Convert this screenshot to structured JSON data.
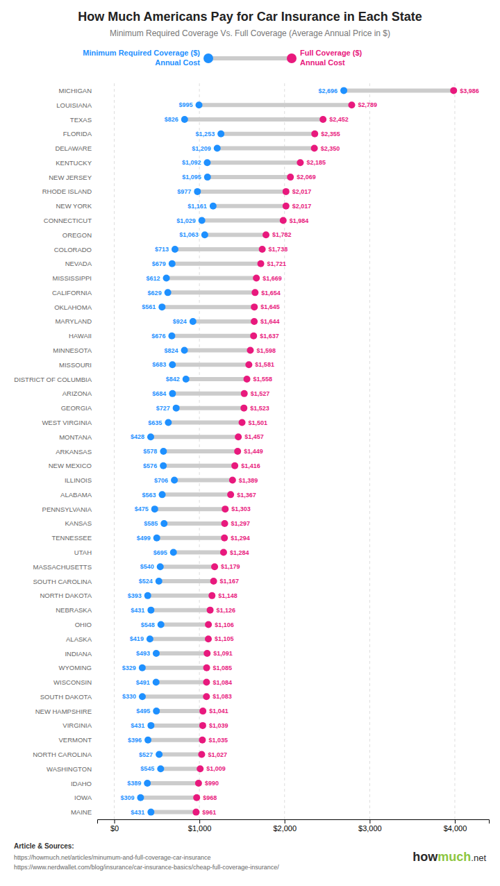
{
  "chart_data": {
    "type": "dumbbell",
    "orientation": "horizontal",
    "title": "How Much Americans Pay for Car Insurance in Each State",
    "subtitle": "Minimum Required Coverage Vs. Full Coverage (Average Annual Price in $)",
    "categories": [
      "MICHIGAN",
      "LOUISIANA",
      "TEXAS",
      "FLORIDA",
      "DELAWARE",
      "KENTUCKY",
      "NEW JERSEY",
      "RHODE ISLAND",
      "NEW YORK",
      "CONNECTICUT",
      "OREGON",
      "COLORADO",
      "NEVADA",
      "MISSISSIPPI",
      "CALIFORNIA",
      "OKLAHOMA",
      "MARYLAND",
      "HAWAII",
      "MINNESOTA",
      "MISSOURI",
      "DISTRICT OF COLUMBIA",
      "ARIZONA",
      "GEORGIA",
      "WEST VIRGINIA",
      "MONTANA",
      "ARKANSAS",
      "NEW MEXICO",
      "ILLINOIS",
      "ALABAMA",
      "PENNSYLVANIA",
      "KANSAS",
      "TENNESSEE",
      "UTAH",
      "MASSACHUSETTS",
      "SOUTH CAROLINA",
      "NORTH DAKOTA",
      "NEBRASKA",
      "OHIO",
      "ALASKA",
      "INDIANA",
      "WYOMING",
      "WISCONSIN",
      "SOUTH DAKOTA",
      "NEW HAMPSHIRE",
      "VIRGINIA",
      "VERMONT",
      "NORTH CAROLINA",
      "WASHINGTON",
      "IDAHO",
      "IOWA",
      "MAINE"
    ],
    "series": [
      {
        "name": "Minimum Required Coverage ($)\nAnnual Cost",
        "color": "#1E90FF",
        "values": [
          2696,
          995,
          826,
          1253,
          1209,
          1092,
          1095,
          977,
          1161,
          1029,
          1063,
          713,
          679,
          612,
          629,
          561,
          924,
          676,
          824,
          683,
          842,
          684,
          727,
          635,
          428,
          578,
          576,
          706,
          563,
          475,
          585,
          499,
          695,
          540,
          524,
          393,
          431,
          548,
          419,
          493,
          329,
          491,
          330,
          495,
          431,
          396,
          527,
          545,
          389,
          309,
          431
        ],
        "value_labels": [
          "$2,696",
          "$995",
          "$826",
          "$1,253",
          "$1,209",
          "$1,092",
          "$1,095",
          "$977",
          "$1,161",
          "$1,029",
          "$1,063",
          "$713",
          "$679",
          "$612",
          "$629",
          "$561",
          "$924",
          "$676",
          "$824",
          "$683",
          "$842",
          "$684",
          "$727",
          "$635",
          "$428",
          "$578",
          "$576",
          "$706",
          "$563",
          "$475",
          "$585",
          "$499",
          "$695",
          "$540",
          "$524",
          "$393",
          "$431",
          "$548",
          "$419",
          "$493",
          "$329",
          "$491",
          "$330",
          "$495",
          "$431",
          "$396",
          "$527",
          "$545",
          "$389",
          "$309",
          "$431"
        ]
      },
      {
        "name": "Full Coverage ($)\nAnnual Cost",
        "color": "#E8197D",
        "values": [
          3986,
          2789,
          2452,
          2355,
          2350,
          2185,
          2069,
          2017,
          2017,
          1984,
          1782,
          1738,
          1721,
          1669,
          1654,
          1645,
          1644,
          1637,
          1598,
          1581,
          1558,
          1527,
          1523,
          1501,
          1457,
          1449,
          1416,
          1389,
          1367,
          1303,
          1297,
          1294,
          1284,
          1179,
          1167,
          1148,
          1126,
          1106,
          1105,
          1091,
          1085,
          1084,
          1083,
          1041,
          1039,
          1035,
          1027,
          1009,
          990,
          968,
          961
        ],
        "value_labels": [
          "$3,986",
          "$2,789",
          "$2,452",
          "$2,355",
          "$2,350",
          "$2,185",
          "$2,069",
          "$2,017",
          "$2,017",
          "$1,984",
          "$1,782",
          "$1,738",
          "$1,721",
          "$1,669",
          "$1,654",
          "$1,645",
          "$1,644",
          "$1,637",
          "$1,598",
          "$1,581",
          "$1,558",
          "$1,527",
          "$1,523",
          "$1,501",
          "$1,457",
          "$1,449",
          "$1,416",
          "$1,389",
          "$1,367",
          "$1,303",
          "$1,297",
          "$1,294",
          "$1,284",
          "$1,179",
          "$1,167",
          "$1,148",
          "$1,126",
          "$1,106",
          "$1,105",
          "$1,091",
          "$1,085",
          "$1,084",
          "$1,083",
          "$1,041",
          "$1,039",
          "$1,035",
          "$1,027",
          "$1,009",
          "$990",
          "$968",
          "$961"
        ]
      }
    ],
    "color": "#CCCCCC",
    "data_labels": true,
    "grid": true,
    "xlim": [
      -200,
      4400
    ],
    "xticks": [
      {
        "value": 0,
        "label": "$0"
      },
      {
        "value": 1000,
        "label": "$1,000"
      },
      {
        "value": 2000,
        "label": "$2,000"
      },
      {
        "value": 3000,
        "label": "$3,000"
      },
      {
        "value": 4000,
        "label": "$4,000"
      }
    ],
    "annotations": [
      "Article & Sources:",
      "https://howmuch.net/articles/minumum-and-full-coverage-car-insurance",
      "https://www.nerdwallet.com/blog/insurance/car-insurance-basics/cheap-full-coverage-insurance/",
      "how",
      "much",
      ".net"
    ]
  }
}
